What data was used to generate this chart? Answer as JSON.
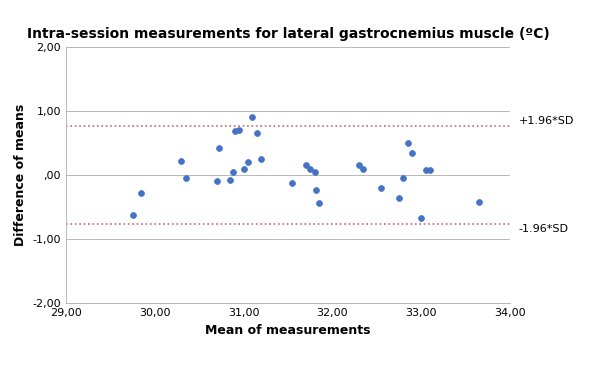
{
  "title": "Intra-session measurements for lateral gastrocnemius muscle (ºC)",
  "xlabel": "Mean of measurements",
  "ylabel": "Difference of means",
  "xlim": [
    29.0,
    34.0
  ],
  "ylim": [
    -2.0,
    2.0
  ],
  "xticks": [
    29.0,
    30.0,
    31.0,
    32.0,
    33.0,
    34.0
  ],
  "yticks": [
    -2.0,
    -1.0,
    0.0,
    1.0,
    2.0
  ],
  "ytick_labels": [
    "-2,00",
    "-1,00",
    ",00",
    "1,00",
    "2,00"
  ],
  "xtick_labels": [
    "29,00",
    "30,00",
    "31,00",
    "32,00",
    "33,00",
    "34,00"
  ],
  "upper_limit": 0.76,
  "lower_limit": -0.76,
  "upper_label": "+1.96*SD",
  "lower_label": "-1.96*SD",
  "dot_color": "#4472C4",
  "dot_size": 18,
  "limit_color": "#cc6677",
  "limit_linewidth": 1.2,
  "background_color": "#ffffff",
  "grid_color": "#b8b8b8",
  "grid_linewidth": 0.7,
  "title_fontsize": 10,
  "label_fontsize": 9,
  "tick_fontsize": 8,
  "annotation_fontsize": 8,
  "scatter_x": [
    29.75,
    29.85,
    30.3,
    30.35,
    30.7,
    30.72,
    30.85,
    30.88,
    30.9,
    30.95,
    31.0,
    31.05,
    31.1,
    31.15,
    31.2,
    31.55,
    31.7,
    31.75,
    31.8,
    31.82,
    31.85,
    32.3,
    32.35,
    32.55,
    32.75,
    32.8,
    32.85,
    32.9,
    33.0,
    33.05,
    33.1,
    33.65
  ],
  "scatter_y": [
    -0.63,
    -0.28,
    0.22,
    -0.05,
    -0.09,
    0.42,
    -0.08,
    0.05,
    0.68,
    0.7,
    0.1,
    0.2,
    0.9,
    0.65,
    0.25,
    -0.12,
    0.15,
    0.1,
    0.05,
    -0.24,
    -0.43,
    0.15,
    0.1,
    -0.2,
    -0.35,
    -0.05,
    0.5,
    0.35,
    -0.67,
    0.08,
    0.08,
    -0.42
  ]
}
